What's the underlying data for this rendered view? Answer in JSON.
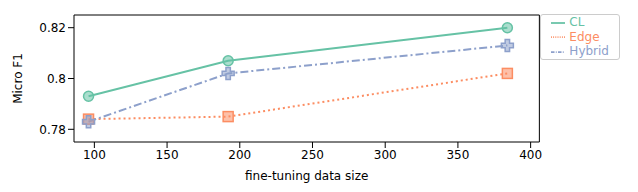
{
  "chart_data": {
    "type": "line",
    "x_label": "fine-tuning data size",
    "y_label": "Micro F1",
    "x": [
      96,
      192,
      384
    ],
    "series": [
      {
        "name": "CL",
        "color": "#66c2a5",
        "marker": "circle",
        "line_style": "solid",
        "values": [
          0.793,
          0.807,
          0.82
        ]
      },
      {
        "name": "Edge",
        "color": "#fc8d62",
        "marker": "square",
        "line_style": "dotted",
        "values": [
          0.784,
          0.785,
          0.802
        ]
      },
      {
        "name": "Hybrid",
        "color": "#8da0cb",
        "marker": "plus",
        "line_style": "dashdot",
        "values": [
          0.783,
          0.802,
          0.813
        ]
      }
    ],
    "xlim": [
      86,
      406
    ],
    "xticks": [
      100,
      150,
      200,
      250,
      300,
      350,
      400
    ],
    "ylim": [
      0.775,
      0.825
    ],
    "yticks": [
      0.78,
      0.8,
      0.82
    ],
    "legend": "right",
    "grid": false
  }
}
